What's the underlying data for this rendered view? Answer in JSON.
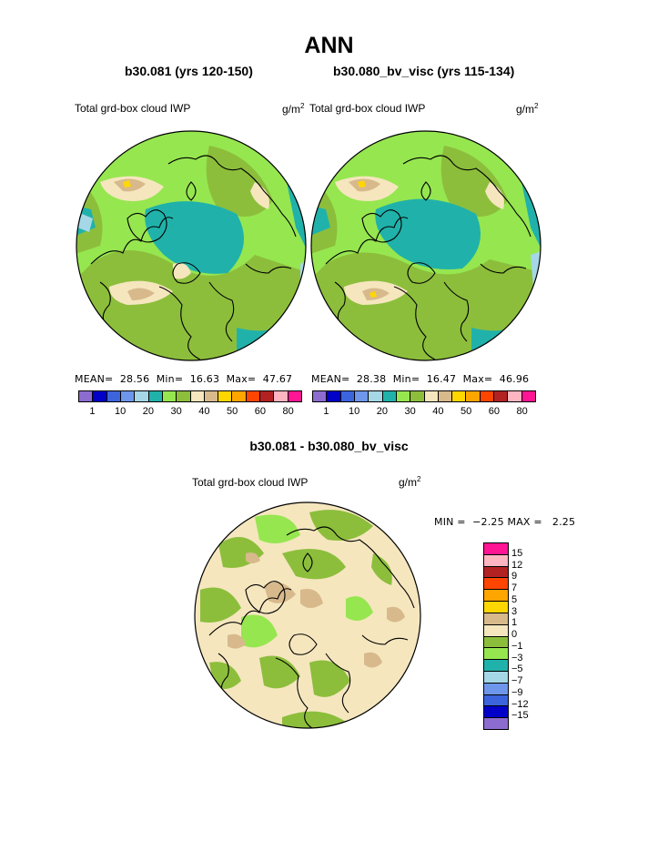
{
  "title": "ANN",
  "panels": [
    {
      "case": "b30.081 (yrs 120-150)",
      "variable": "Total grd-box cloud IWP",
      "units_base": "g/m",
      "units_exp": "2",
      "stats": {
        "mean_label": "MEAN=",
        "mean": "28.56",
        "min_label": "Min=",
        "min": "16.63",
        "max_label": "Max=",
        "max": "47.67"
      }
    },
    {
      "case": "b30.080_bv_visc (yrs 115-134)",
      "variable": "Total grd-box cloud IWP",
      "units_base": "g/m",
      "units_exp": "2",
      "stats": {
        "mean_label": "MEAN=",
        "mean": "28.38",
        "min_label": "Min=",
        "min": "16.47",
        "max_label": "Max=",
        "max": "46.96"
      }
    }
  ],
  "colorbar": {
    "colors": [
      "#8c6ccf",
      "#0000c8",
      "#3c64dc",
      "#6e96eb",
      "#a5d7e6",
      "#20b2aa",
      "#96e650",
      "#8cbe3c",
      "#f5e6be",
      "#d7b98c",
      "#ffd700",
      "#ffa500",
      "#ff4500",
      "#b22222",
      "#ffb6c1",
      "#ff1493"
    ],
    "labels": [
      "1",
      "10",
      "20",
      "30",
      "40",
      "50",
      "60",
      "80"
    ]
  },
  "difference": {
    "title": "b30.081 - b30.080_bv_visc",
    "variable": "Total grd-box cloud IWP",
    "units_base": "g/m",
    "units_exp": "2",
    "minmax": {
      "min_label": "MIN =",
      "min": "−2.25",
      "max_label": "MAX =",
      "max": "2.25"
    },
    "colorbar": {
      "colors": [
        "#ff1493",
        "#ffb6c1",
        "#b22222",
        "#ff4500",
        "#ffa500",
        "#ffd700",
        "#d7b98c",
        "#f5e6be",
        "#8cbe3c",
        "#96e650",
        "#20b2aa",
        "#a5d7e6",
        "#6e96eb",
        "#3c64dc",
        "#0000c8",
        "#8c6ccf"
      ],
      "labels": [
        "15",
        "12",
        "9",
        "7",
        "5",
        "3",
        "1",
        "0",
        "−1",
        "−3",
        "−5",
        "−7",
        "−9",
        "−12",
        "−15"
      ]
    }
  }
}
